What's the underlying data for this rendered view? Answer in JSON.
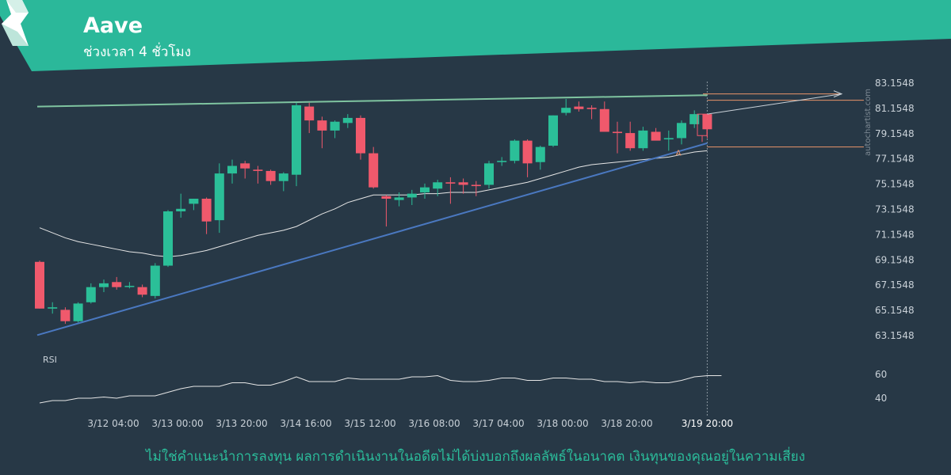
{
  "header": {
    "title": "Aave",
    "subtitle": "ช่วงเวลา 4 ชั่วโมง",
    "accent_color": "#2bb89a"
  },
  "watermark": "autochartist.com",
  "disclaimer": "ไม่ใช่คำแนะนำการลงทุน ผลการดำเนินงานในอดีตไม่ได้บ่งบอกถึงผลลัพธ์ในอนาคต เงินทุนของคุณอยู่ในความเสี่ยง",
  "chart_data": {
    "type": "candlestick",
    "y_ticks": [
      "83.1548",
      "81.1548",
      "79.1548",
      "77.1548",
      "75.1548",
      "73.1548",
      "71.1548",
      "69.1548",
      "67.1548",
      "65.1548",
      "63.1548"
    ],
    "x_ticks": [
      "3/12 04:00",
      "3/13 00:00",
      "3/13 20:00",
      "3/14 16:00",
      "3/15 12:00",
      "3/16 08:00",
      "3/17 04:00",
      "3/18 00:00",
      "3/18 20:00",
      "3/19 20:00"
    ],
    "ylim": [
      62.2,
      84.3
    ],
    "candles": [
      [
        69.0,
        69.1,
        65.3,
        65.3
      ],
      [
        65.3,
        65.8,
        64.9,
        65.4
      ],
      [
        65.2,
        65.4,
        64.1,
        64.3
      ],
      [
        64.3,
        65.8,
        64.2,
        65.7
      ],
      [
        65.8,
        67.3,
        65.7,
        67.0
      ],
      [
        67.0,
        67.6,
        66.6,
        67.3
      ],
      [
        67.4,
        67.8,
        66.8,
        67.0
      ],
      [
        67.1,
        67.4,
        66.9,
        67.1
      ],
      [
        67.0,
        67.2,
        66.2,
        66.4
      ],
      [
        66.3,
        68.9,
        66.1,
        68.7
      ],
      [
        68.7,
        73.1,
        68.6,
        73.0
      ],
      [
        73.0,
        74.4,
        72.5,
        73.2
      ],
      [
        73.6,
        74.0,
        73.1,
        74.0
      ],
      [
        74.0,
        74.1,
        71.2,
        72.2
      ],
      [
        72.3,
        76.8,
        71.3,
        76.0
      ],
      [
        76.0,
        77.1,
        75.2,
        76.6
      ],
      [
        76.8,
        77.0,
        75.6,
        76.4
      ],
      [
        76.3,
        76.6,
        75.2,
        76.2
      ],
      [
        76.2,
        76.3,
        75.1,
        75.4
      ],
      [
        75.4,
        76.1,
        74.6,
        76.0
      ],
      [
        75.9,
        81.6,
        75.0,
        81.4
      ],
      [
        81.3,
        81.6,
        79.2,
        80.2
      ],
      [
        80.2,
        80.5,
        78.0,
        79.4
      ],
      [
        79.4,
        80.2,
        78.8,
        80.1
      ],
      [
        80.0,
        80.7,
        79.6,
        80.4
      ],
      [
        80.4,
        80.6,
        77.1,
        77.6
      ],
      [
        77.6,
        78.1,
        74.8,
        74.9
      ],
      [
        74.2,
        74.3,
        71.8,
        74.0
      ],
      [
        73.9,
        74.5,
        73.4,
        74.1
      ],
      [
        74.1,
        74.7,
        73.5,
        74.4
      ],
      [
        74.5,
        75.2,
        74.0,
        74.9
      ],
      [
        74.8,
        75.5,
        74.2,
        75.3
      ],
      [
        75.3,
        75.7,
        73.6,
        75.2
      ],
      [
        75.3,
        75.6,
        74.4,
        75.1
      ],
      [
        75.1,
        75.4,
        74.2,
        75.0
      ],
      [
        75.1,
        77.0,
        74.8,
        76.8
      ],
      [
        76.9,
        77.3,
        76.6,
        77.0
      ],
      [
        77.0,
        78.7,
        76.8,
        78.6
      ],
      [
        78.6,
        78.7,
        75.7,
        76.8
      ],
      [
        76.9,
        78.2,
        76.3,
        78.1
      ],
      [
        78.2,
        80.6,
        78.1,
        80.6
      ],
      [
        80.8,
        81.9,
        80.6,
        81.2
      ],
      [
        81.3,
        81.7,
        80.9,
        81.1
      ],
      [
        81.2,
        81.4,
        80.3,
        81.1
      ],
      [
        81.1,
        81.7,
        79.3,
        79.3
      ],
      [
        79.3,
        80.1,
        77.6,
        79.2
      ],
      [
        79.2,
        80.1,
        77.8,
        78.0
      ],
      [
        78.0,
        79.7,
        77.8,
        79.4
      ],
      [
        79.3,
        79.6,
        78.7,
        78.6
      ],
      [
        78.7,
        79.4,
        77.8,
        78.8
      ],
      [
        78.8,
        80.2,
        78.3,
        80.0
      ],
      [
        79.9,
        81.0,
        79.6,
        80.7
      ],
      [
        80.7,
        80.7,
        78.8,
        79.5
      ]
    ],
    "ma": [
      71.7,
      71.3,
      70.9,
      70.6,
      70.4,
      70.2,
      70.0,
      69.8,
      69.7,
      69.5,
      69.4,
      69.5,
      69.7,
      69.9,
      70.2,
      70.5,
      70.8,
      71.1,
      71.3,
      71.5,
      71.8,
      72.3,
      72.8,
      73.2,
      73.7,
      74.0,
      74.3,
      74.3,
      74.3,
      74.3,
      74.4,
      74.4,
      74.5,
      74.5,
      74.5,
      74.7,
      74.9,
      75.1,
      75.3,
      75.6,
      75.9,
      76.2,
      76.5,
      76.7,
      76.8,
      76.9,
      77.0,
      77.1,
      77.2,
      77.3,
      77.5,
      77.7,
      77.8
    ],
    "resistance_line": {
      "start": 81.3,
      "end": 82.2,
      "color": "#7fc4a0"
    },
    "support_line": {
      "start": 63.2,
      "end": 78.4,
      "color": "#4a78c0"
    },
    "projection_lines": {
      "upper": 82.3,
      "lower": 78.1,
      "color": "#e8946a"
    },
    "projection_label": "A",
    "rsi": {
      "label": "RSI",
      "ticks": [
        "60",
        "40"
      ],
      "values": [
        36,
        38,
        38,
        40,
        40,
        41,
        40,
        42,
        42,
        42,
        45,
        48,
        50,
        50,
        50,
        53,
        53,
        51,
        51,
        54,
        58,
        54,
        54,
        54,
        57,
        56,
        56,
        56,
        56,
        58,
        58,
        59,
        55,
        54,
        54,
        55,
        57,
        57,
        55,
        55,
        57,
        57,
        56,
        56,
        54,
        54,
        53,
        54,
        53,
        53,
        55,
        58,
        59
      ]
    },
    "last_label": "3/19 20:00"
  }
}
